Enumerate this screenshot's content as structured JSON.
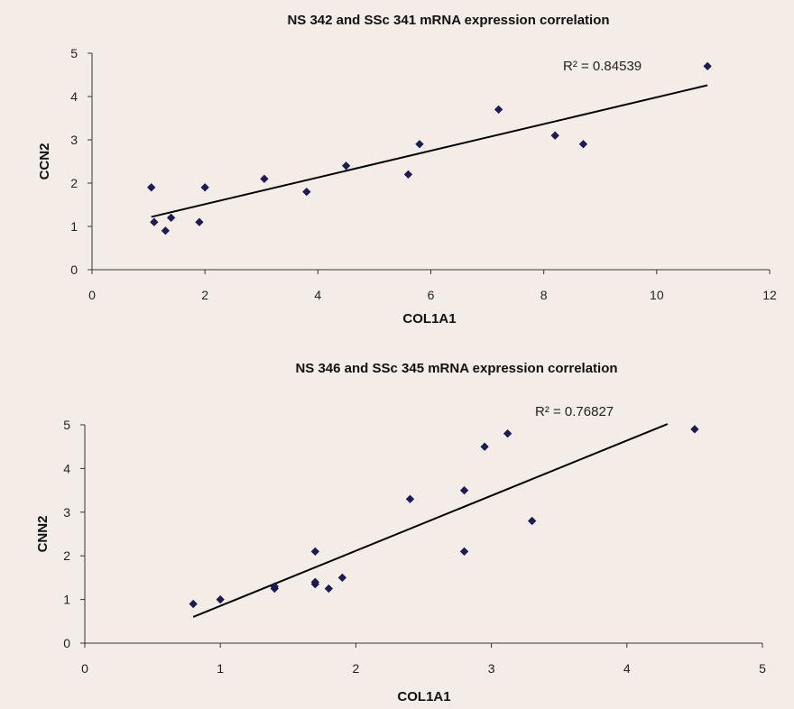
{
  "chart_data": [
    {
      "type": "scatter",
      "title": "NS 342 and SSc 341 mRNA expression correlation",
      "xlabel": "COL1A1",
      "ylabel": "CCN2",
      "xlim": [
        0,
        12
      ],
      "ylim": [
        0,
        5
      ],
      "x_ticks": [
        0,
        2,
        4,
        6,
        8,
        10,
        12
      ],
      "y_ticks": [
        0,
        1,
        2,
        3,
        4,
        5
      ],
      "points": [
        {
          "x": 1.05,
          "y": 1.9
        },
        {
          "x": 1.1,
          "y": 1.1
        },
        {
          "x": 1.3,
          "y": 0.9
        },
        {
          "x": 1.4,
          "y": 1.2
        },
        {
          "x": 1.9,
          "y": 1.1
        },
        {
          "x": 2.0,
          "y": 1.9
        },
        {
          "x": 3.05,
          "y": 2.1
        },
        {
          "x": 3.8,
          "y": 1.8
        },
        {
          "x": 4.5,
          "y": 2.4
        },
        {
          "x": 5.6,
          "y": 2.2
        },
        {
          "x": 5.8,
          "y": 2.9
        },
        {
          "x": 7.2,
          "y": 3.7
        },
        {
          "x": 8.2,
          "y": 3.1
        },
        {
          "x": 8.7,
          "y": 2.9
        },
        {
          "x": 10.9,
          "y": 4.7
        }
      ],
      "trendline": {
        "x": [
          1.05,
          10.9
        ],
        "y": [
          1.22,
          4.26
        ]
      },
      "r_squared_label": "R² = 0.84539",
      "marker_color": "#1c1c5c",
      "grid": false,
      "legend": "none"
    },
    {
      "type": "scatter",
      "title": "NS 346 and SSc 345 mRNA expression correlation",
      "xlabel": "COL1A1",
      "ylabel": "CNN2",
      "xlim": [
        0,
        5
      ],
      "ylim": [
        0,
        5
      ],
      "x_ticks": [
        0,
        1,
        2,
        3,
        4,
        5
      ],
      "y_ticks": [
        0,
        1,
        2,
        3,
        4,
        5
      ],
      "points": [
        {
          "x": 0.8,
          "y": 0.9
        },
        {
          "x": 1.0,
          "y": 1.0
        },
        {
          "x": 1.4,
          "y": 1.25
        },
        {
          "x": 1.4,
          "y": 1.3
        },
        {
          "x": 1.7,
          "y": 1.35
        },
        {
          "x": 1.7,
          "y": 1.4
        },
        {
          "x": 1.7,
          "y": 2.1
        },
        {
          "x": 1.8,
          "y": 1.25
        },
        {
          "x": 1.9,
          "y": 1.5
        },
        {
          "x": 2.4,
          "y": 3.3
        },
        {
          "x": 2.8,
          "y": 3.5
        },
        {
          "x": 2.8,
          "y": 2.1
        },
        {
          "x": 2.95,
          "y": 4.5
        },
        {
          "x": 3.12,
          "y": 4.8
        },
        {
          "x": 3.3,
          "y": 2.8
        },
        {
          "x": 4.5,
          "y": 4.9
        }
      ],
      "trendline": {
        "x": [
          0.8,
          4.3
        ],
        "y": [
          0.6,
          5.02
        ]
      },
      "r_squared_label": "R² = 0.76827",
      "marker_color": "#1c1c5c",
      "grid": false,
      "legend": "none"
    }
  ]
}
